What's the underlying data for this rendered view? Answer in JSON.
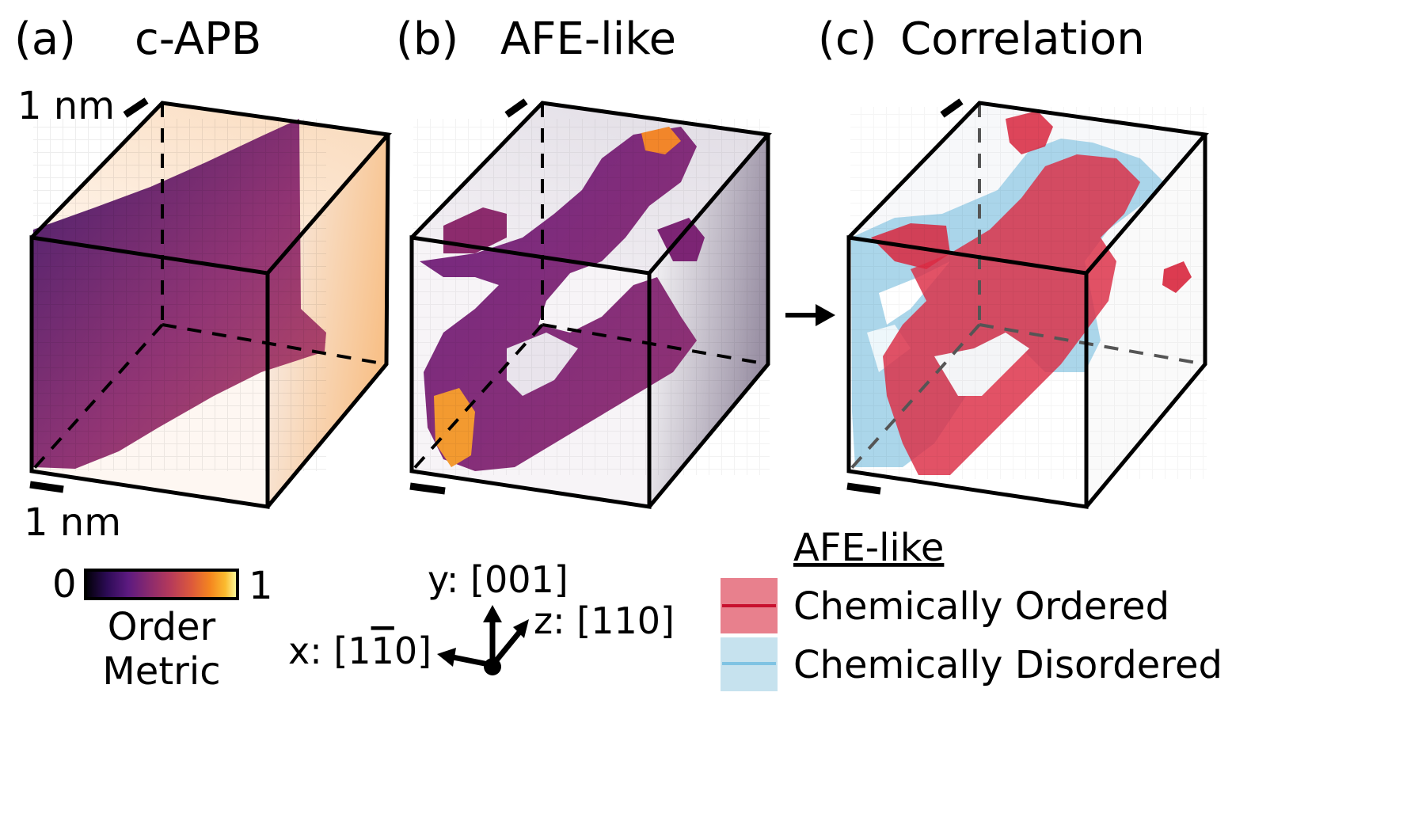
{
  "panels": [
    {
      "letter": "(a)",
      "title": "c-APB"
    },
    {
      "letter": "(b)",
      "title": "AFE-like"
    },
    {
      "letter": "(c)",
      "title": "Correlation"
    }
  ],
  "scale_bar_top": "1 nm",
  "scale_bar_bottom": "1 nm",
  "colorbar": {
    "min": "0",
    "max": "1",
    "label_line1": "Order",
    "label_line2": "Metric",
    "colormap": [
      "#000004",
      "#2c0b55",
      "#5c1a80",
      "#8a2a6e",
      "#b63a5a",
      "#dd5a3b",
      "#f4861f",
      "#fbbb2f",
      "#fcffa4"
    ]
  },
  "axes": {
    "y": "y: [001]",
    "x": "x: [1̄1̅0]",
    "x_main": "x: [1",
    "x_bar": "1",
    "x_end": "0]",
    "z": "z: [110]"
  },
  "legend": {
    "title": "AFE-like",
    "items": [
      {
        "label": "Chemically Ordered",
        "swatch": "#e8808d",
        "line": "#c8102e"
      },
      {
        "label": "Chemically Disordered",
        "swatch": "#c6e2ee",
        "line": "#7fc3e3"
      }
    ]
  },
  "colors": {
    "ordered": "#d9283f",
    "disordered": "#8fcbe5",
    "box_edge": "#000000"
  }
}
